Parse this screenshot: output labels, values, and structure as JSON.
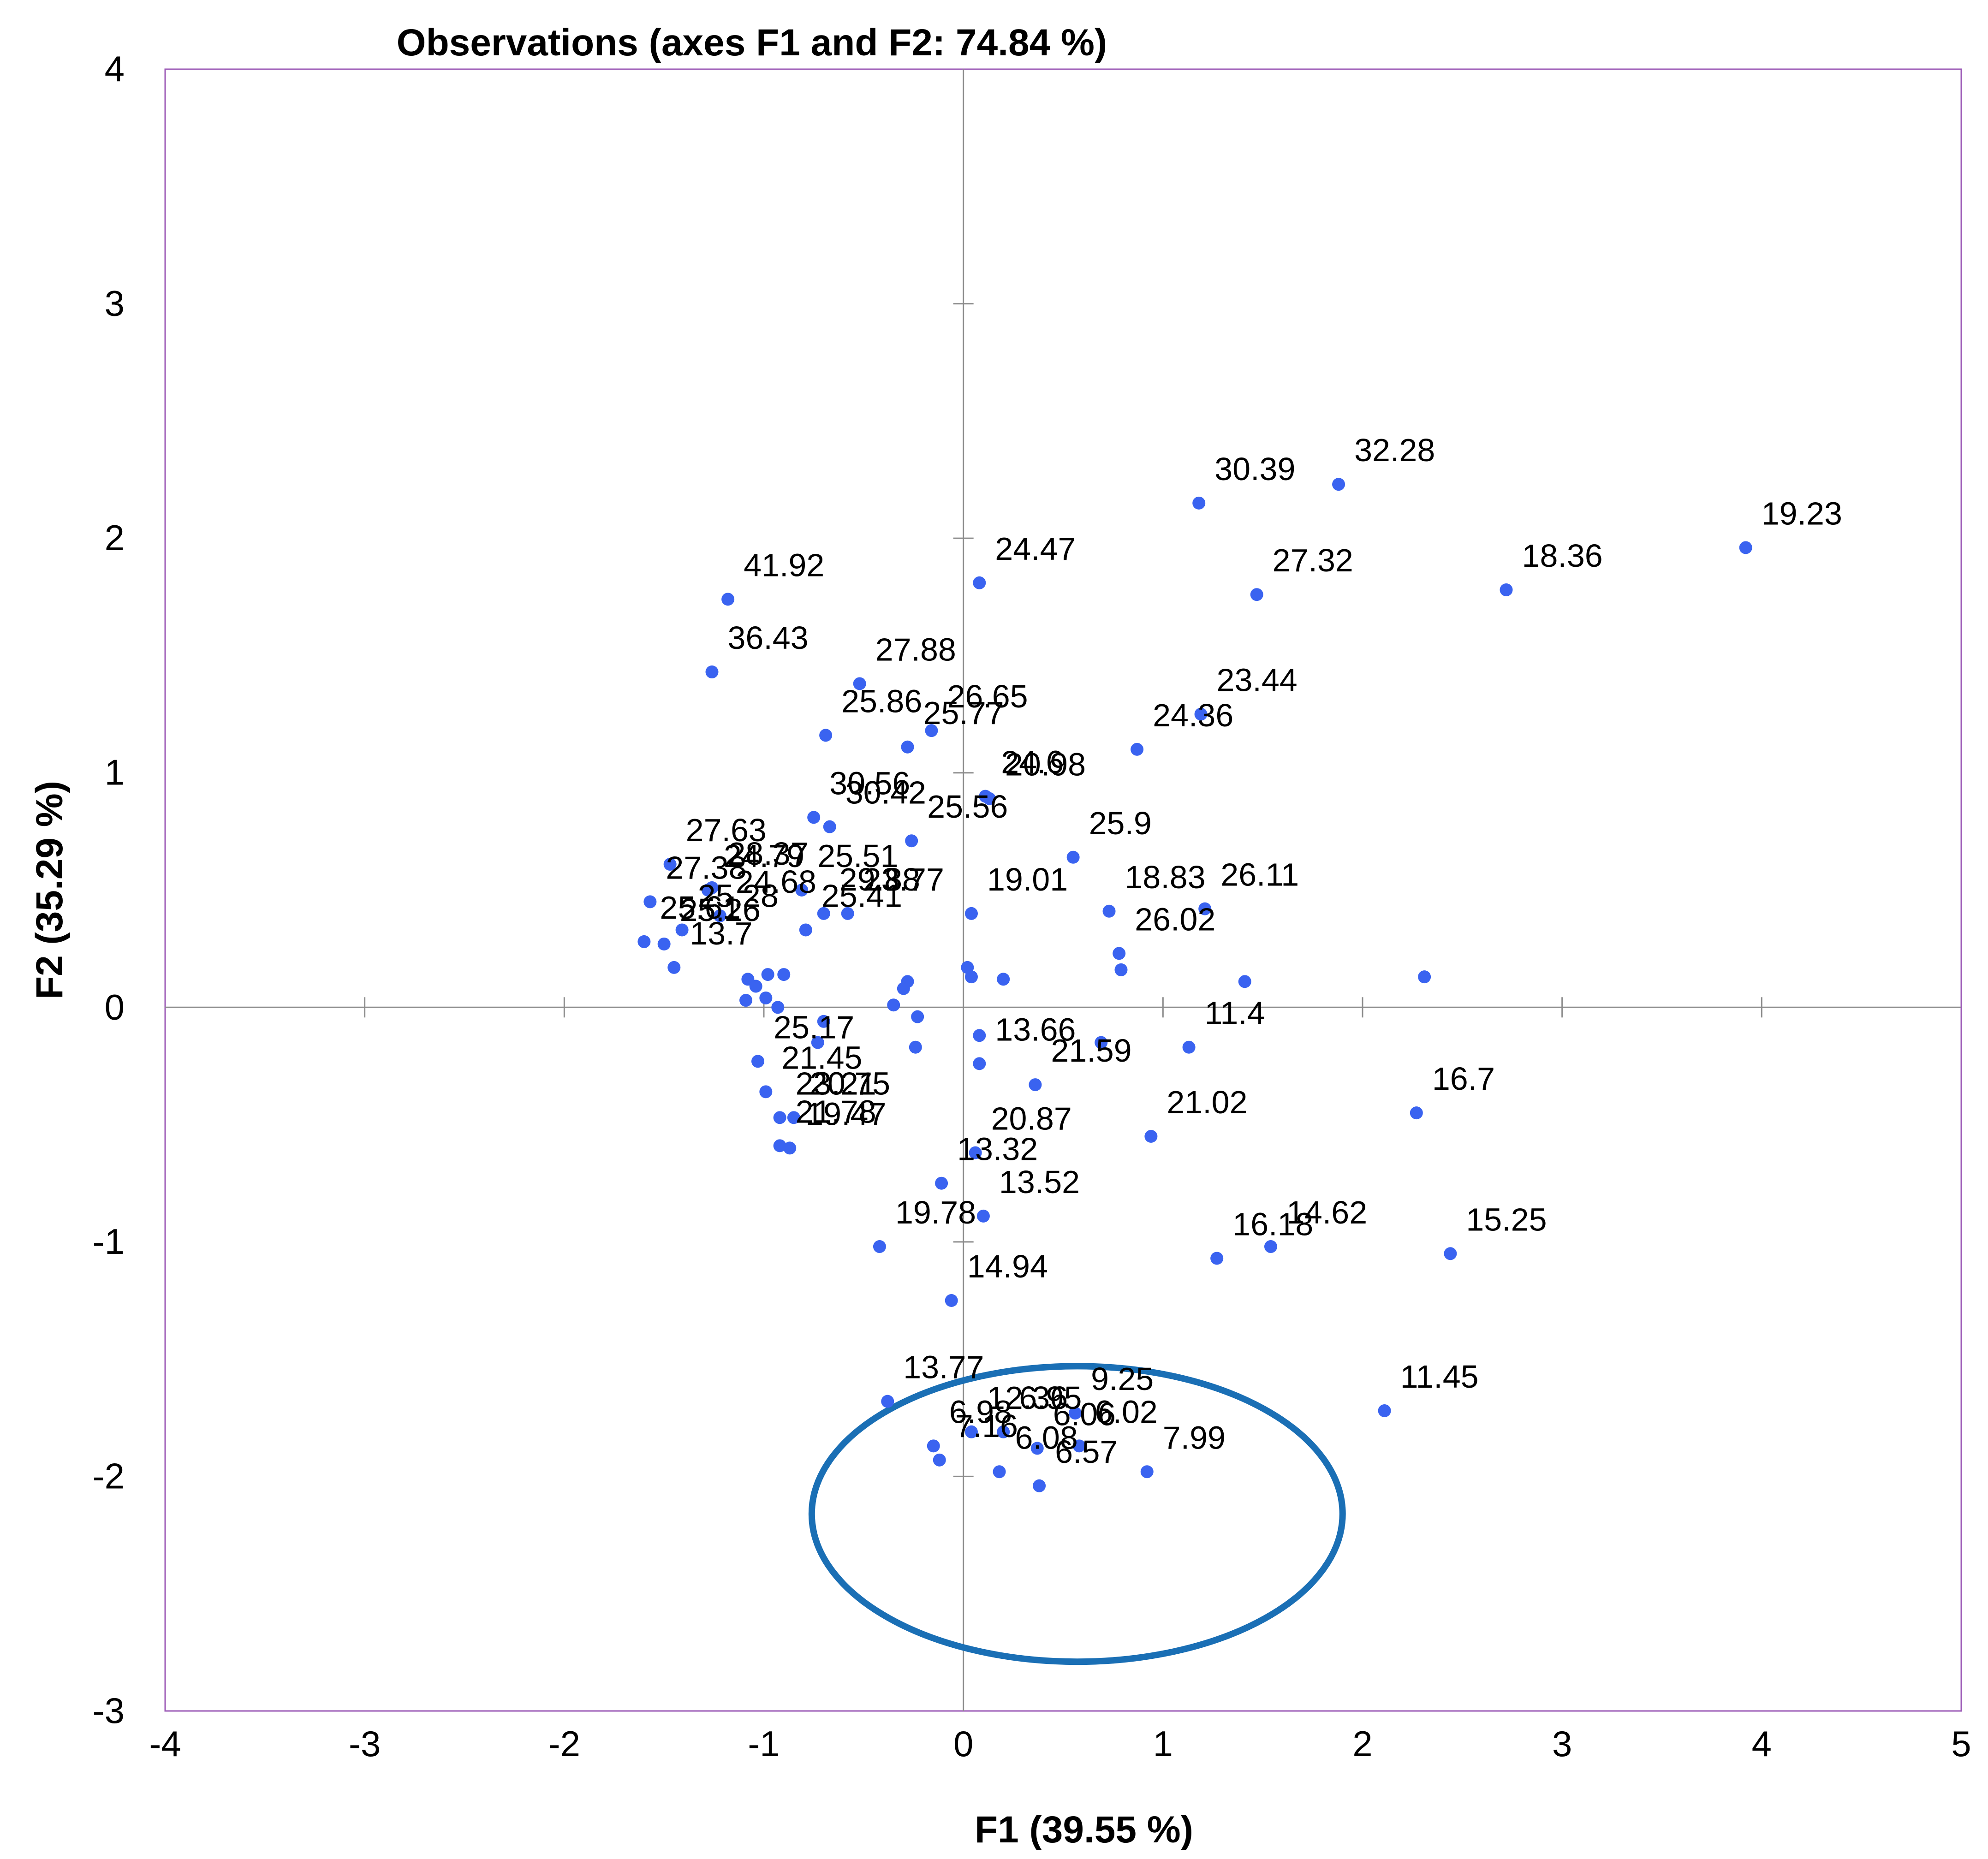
{
  "chart_data": {
    "type": "scatter",
    "title": "Observations (axes F1 and F2: 74.84 %)",
    "xlabel": "F1 (39.55 %)",
    "ylabel": "F2 (35.29 %)",
    "xlim": [
      -4,
      5
    ],
    "ylim": [
      -3,
      4
    ],
    "xticks": [
      -4,
      -3,
      -2,
      -1,
      0,
      1,
      2,
      3,
      4,
      5
    ],
    "yticks": [
      -3,
      -2,
      -1,
      0,
      1,
      2,
      3,
      4
    ],
    "grid": false,
    "colors": {
      "points": "#3a63f0",
      "frame": "#9b59b6",
      "axes": "#8c8c8c",
      "ellipse": "#1a6fb5"
    },
    "points": [
      {
        "x": 1.18,
        "y": 2.15,
        "label": "30.39"
      },
      {
        "x": 1.88,
        "y": 2.23,
        "label": "32.28"
      },
      {
        "x": 3.92,
        "y": 1.96,
        "label": "19.23"
      },
      {
        "x": 2.72,
        "y": 1.78,
        "label": "18.36"
      },
      {
        "x": 1.47,
        "y": 1.76,
        "label": "27.32"
      },
      {
        "x": 0.08,
        "y": 1.81,
        "label": "24.47"
      },
      {
        "x": -1.18,
        "y": 1.74,
        "label": "41.92"
      },
      {
        "x": -1.26,
        "y": 1.43,
        "label": "36.43"
      },
      {
        "x": -0.52,
        "y": 1.38,
        "label": "27.88"
      },
      {
        "x": 1.19,
        "y": 1.25,
        "label": "23.44"
      },
      {
        "x": 0.87,
        "y": 1.1,
        "label": "24.36"
      },
      {
        "x": -0.69,
        "y": 1.16,
        "label": "25.86"
      },
      {
        "x": -0.16,
        "y": 1.18,
        "label": "26.65"
      },
      {
        "x": -0.28,
        "y": 1.11,
        "label": "25.77"
      },
      {
        "x": 0.11,
        "y": 0.9,
        "label": "24.6"
      },
      {
        "x": 0.13,
        "y": 0.89,
        "label": "20.98"
      },
      {
        "x": -0.75,
        "y": 0.81,
        "label": "30.56"
      },
      {
        "x": -0.67,
        "y": 0.77,
        "label": "30.42"
      },
      {
        "x": -0.26,
        "y": 0.71,
        "label": "25.56"
      },
      {
        "x": 0.55,
        "y": 0.64,
        "label": "25.9"
      },
      {
        "x": -1.47,
        "y": 0.61,
        "label": "27.63"
      },
      {
        "x": -1.28,
        "y": 0.5,
        "label": "24.79"
      },
      {
        "x": -1.26,
        "y": 0.51,
        "label": "28.37"
      },
      {
        "x": -0.81,
        "y": 0.5,
        "label": "25.51"
      },
      {
        "x": -1.57,
        "y": 0.45,
        "label": "27.38"
      },
      {
        "x": -1.22,
        "y": 0.39,
        "label": "24.68"
      },
      {
        "x": -0.7,
        "y": 0.4,
        "label": "29.88"
      },
      {
        "x": -0.58,
        "y": 0.4,
        "label": "23.77"
      },
      {
        "x": 0.04,
        "y": 0.4,
        "label": "19.01"
      },
      {
        "x": 0.73,
        "y": 0.41,
        "label": "18.83"
      },
      {
        "x": 1.21,
        "y": 0.42,
        "label": "26.11"
      },
      {
        "x": -1.41,
        "y": 0.33,
        "label": "25.28"
      },
      {
        "x": -0.79,
        "y": 0.33,
        "label": "25.41"
      },
      {
        "x": -1.6,
        "y": 0.28,
        "label": "25.61"
      },
      {
        "x": -1.5,
        "y": 0.27,
        "label": "25.26"
      },
      {
        "x": 0.78,
        "y": 0.23,
        "label": "26.02"
      },
      {
        "x": -1.45,
        "y": 0.17,
        "label": "13.7"
      },
      {
        "x": 0.02,
        "y": 0.17,
        "label": ""
      },
      {
        "x": 0.79,
        "y": 0.16,
        "label": ""
      },
      {
        "x": -0.98,
        "y": 0.14,
        "label": ""
      },
      {
        "x": -0.9,
        "y": 0.14,
        "label": ""
      },
      {
        "x": 0.04,
        "y": 0.13,
        "label": ""
      },
      {
        "x": 2.31,
        "y": 0.13,
        "label": ""
      },
      {
        "x": 0.2,
        "y": 0.12,
        "label": ""
      },
      {
        "x": -1.08,
        "y": 0.12,
        "label": ""
      },
      {
        "x": -0.28,
        "y": 0.11,
        "label": ""
      },
      {
        "x": 1.41,
        "y": 0.11,
        "label": ""
      },
      {
        "x": -1.04,
        "y": 0.09,
        "label": ""
      },
      {
        "x": -0.3,
        "y": 0.08,
        "label": ""
      },
      {
        "x": -0.99,
        "y": 0.04,
        "label": ""
      },
      {
        "x": -1.09,
        "y": 0.03,
        "label": ""
      },
      {
        "x": -0.35,
        "y": 0.01,
        "label": ""
      },
      {
        "x": -0.93,
        "y": 0.0,
        "label": ""
      },
      {
        "x": -0.23,
        "y": -0.04,
        "label": ""
      },
      {
        "x": -0.7,
        "y": -0.06,
        "label": ""
      },
      {
        "x": 0.08,
        "y": -0.12,
        "label": ""
      },
      {
        "x": -0.73,
        "y": -0.15,
        "label": ""
      },
      {
        "x": 0.69,
        "y": -0.15,
        "label": ""
      },
      {
        "x": -0.24,
        "y": -0.17,
        "label": ""
      },
      {
        "x": 1.13,
        "y": -0.17,
        "label": "11.4"
      },
      {
        "x": -1.03,
        "y": -0.23,
        "label": "25.17"
      },
      {
        "x": 0.08,
        "y": -0.24,
        "label": "13.66"
      },
      {
        "x": 0.36,
        "y": -0.33,
        "label": "21.59"
      },
      {
        "x": -0.99,
        "y": -0.36,
        "label": "21.45"
      },
      {
        "x": -0.92,
        "y": -0.47,
        "label": "23.21"
      },
      {
        "x": -0.85,
        "y": -0.47,
        "label": "20.75"
      },
      {
        "x": 2.27,
        "y": -0.45,
        "label": "16.7"
      },
      {
        "x": 0.94,
        "y": -0.55,
        "label": "21.02"
      },
      {
        "x": -0.92,
        "y": -0.59,
        "label": "21.78"
      },
      {
        "x": -0.87,
        "y": -0.6,
        "label": "19.47"
      },
      {
        "x": 0.06,
        "y": -0.62,
        "label": "20.87"
      },
      {
        "x": -0.11,
        "y": -0.75,
        "label": "13.32"
      },
      {
        "x": 0.1,
        "y": -0.89,
        "label": "13.52"
      },
      {
        "x": -0.42,
        "y": -1.02,
        "label": "19.78"
      },
      {
        "x": 1.54,
        "y": -1.02,
        "label": "14.62"
      },
      {
        "x": 1.27,
        "y": -1.07,
        "label": "16.18"
      },
      {
        "x": 2.44,
        "y": -1.05,
        "label": "15.25"
      },
      {
        "x": -0.06,
        "y": -1.25,
        "label": "14.94"
      },
      {
        "x": -0.38,
        "y": -1.68,
        "label": "13.77"
      },
      {
        "x": 2.11,
        "y": -1.72,
        "label": "11.45"
      },
      {
        "x": 0.56,
        "y": -1.73,
        "label": "9.25"
      },
      {
        "x": 0.04,
        "y": -1.81,
        "label": "12.36"
      },
      {
        "x": 0.2,
        "y": -1.81,
        "label": "6.95"
      },
      {
        "x": -0.15,
        "y": -1.87,
        "label": "6.98"
      },
      {
        "x": 0.37,
        "y": -1.88,
        "label": "6.06"
      },
      {
        "x": 0.58,
        "y": -1.87,
        "label": "6.02"
      },
      {
        "x": -0.12,
        "y": -1.93,
        "label": "7.16"
      },
      {
        "x": 0.18,
        "y": -1.98,
        "label": "6.08"
      },
      {
        "x": 0.92,
        "y": -1.98,
        "label": "7.99"
      },
      {
        "x": 0.38,
        "y": -2.04,
        "label": "6.57"
      }
    ],
    "annotations": [
      {
        "type": "ellipse",
        "cx": 0.57,
        "cy": -2.16,
        "rx": 1.33,
        "ry": 0.63
      }
    ]
  }
}
